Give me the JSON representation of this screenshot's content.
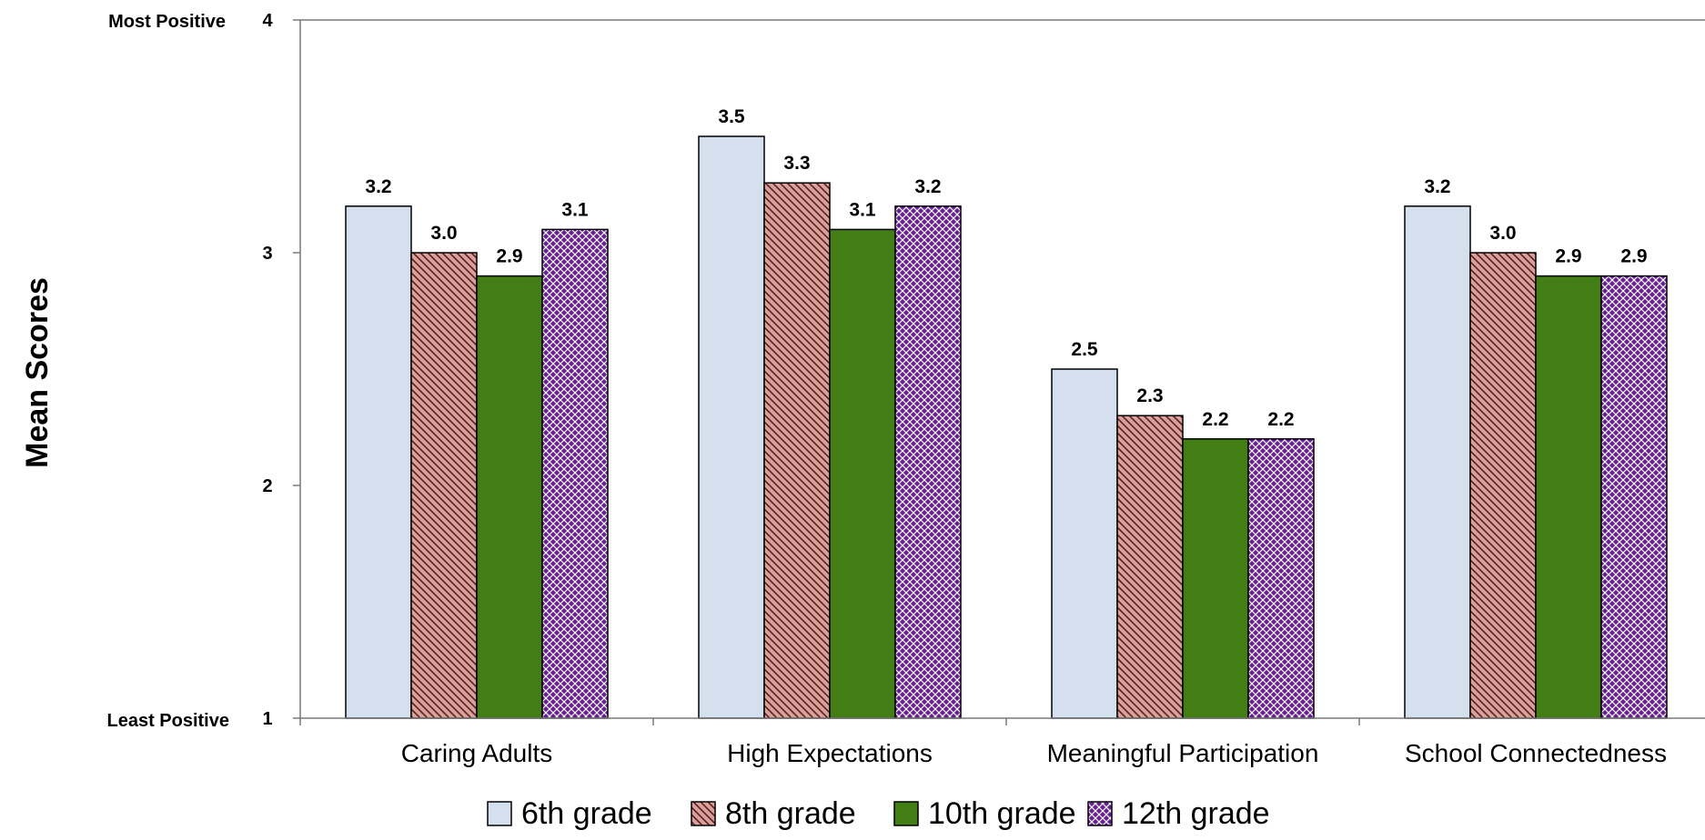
{
  "chart_data": {
    "type": "bar",
    "ylabel": "Mean Scores",
    "ylim": [
      1,
      4
    ],
    "yticks": [
      1,
      2,
      3,
      4
    ],
    "y_top_label": "Most Positive",
    "y_bottom_label": "Least Positive",
    "categories": [
      "Caring Adults",
      "High Expectations",
      "Meaningful Participation",
      "School Connectedness"
    ],
    "series": [
      {
        "name": "6th grade",
        "values": [
          3.2,
          3.5,
          2.5,
          3.2
        ],
        "labels": [
          "3.2",
          "3.5",
          "2.5",
          "3.2"
        ],
        "color": "#d5e0ef",
        "pattern": "solid"
      },
      {
        "name": "8th grade",
        "values": [
          3.0,
          3.3,
          2.3,
          3.0
        ],
        "labels": [
          "3.0",
          "3.3",
          "2.3",
          "3.0"
        ],
        "color": "#d9a09b",
        "pattern": "diagonal"
      },
      {
        "name": "10th grade",
        "values": [
          2.9,
          3.1,
          2.2,
          2.9
        ],
        "labels": [
          "2.9",
          "3.1",
          "2.2",
          "2.9"
        ],
        "color": "#437e14",
        "pattern": "solid"
      },
      {
        "name": "12th grade",
        "values": [
          3.1,
          3.2,
          2.2,
          2.9
        ],
        "labels": [
          "3.1",
          "3.2",
          "2.2",
          "2.9"
        ],
        "color": "#6a1e9a",
        "pattern": "crosshatch"
      }
    ],
    "legend_position": "bottom",
    "grid": false
  }
}
